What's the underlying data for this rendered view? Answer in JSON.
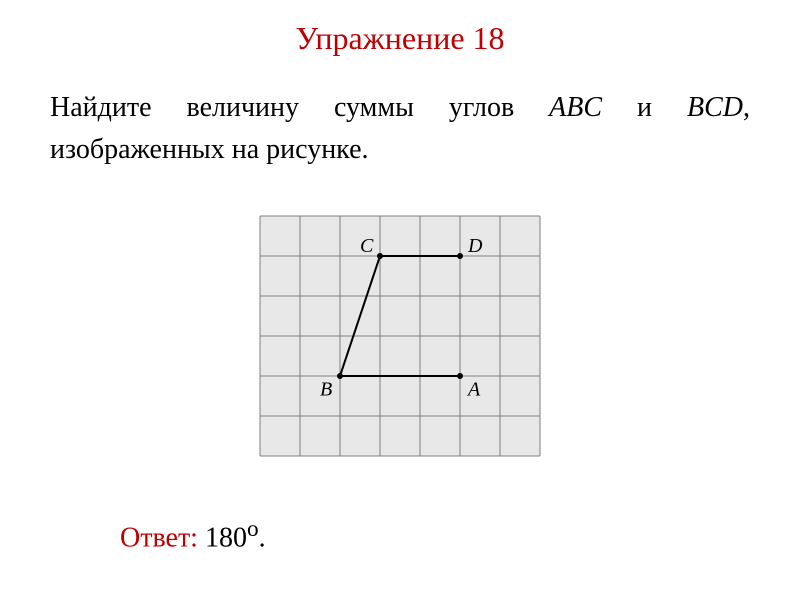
{
  "title": {
    "text": "Упражнение 18",
    "color": "#c00000",
    "fontsize": 32
  },
  "problem": {
    "prefix": "Найдите величину суммы углов ",
    "var1": "ABC",
    "mid": " и ",
    "var2": "BCD",
    "suffix": ", изображенных на рисунке.",
    "color": "#000000",
    "fontsize": 28
  },
  "answer": {
    "label": "Ответ:",
    "value": " 180",
    "degree": "о",
    "period": ".",
    "label_color": "#c00000",
    "value_color": "#000000",
    "fontsize": 28
  },
  "diagram": {
    "type": "geometry-grid",
    "grid": {
      "cols": 7,
      "rows": 6,
      "cell_size": 40,
      "background": "#E8E8E8",
      "line_color": "#808080",
      "line_width": 1
    },
    "points": {
      "A": {
        "col": 5,
        "row": 4,
        "label": "A",
        "label_dx": 8,
        "label_dy": 6
      },
      "B": {
        "col": 2,
        "row": 4,
        "label": "B",
        "label_dx": -20,
        "label_dy": 6
      },
      "C": {
        "col": 3,
        "row": 1,
        "label": "C",
        "label_dx": -20,
        "label_dy": -4
      },
      "D": {
        "col": 5,
        "row": 1,
        "label": "D",
        "label_dx": 8,
        "label_dy": -4
      }
    },
    "segments": [
      {
        "from": "B",
        "to": "A"
      },
      {
        "from": "B",
        "to": "C"
      },
      {
        "from": "C",
        "to": "D"
      }
    ],
    "segment_color": "#000000",
    "segment_width": 2,
    "point_radius": 3,
    "label_fontsize": 20,
    "label_fontstyle": "italic"
  }
}
